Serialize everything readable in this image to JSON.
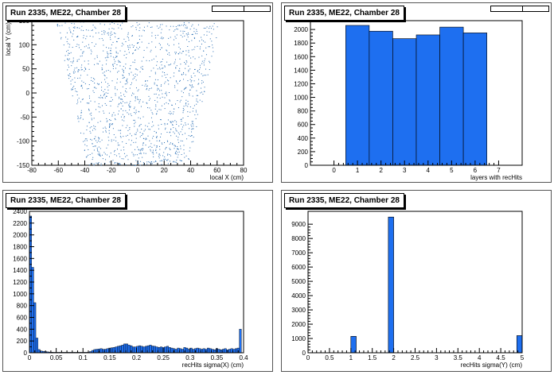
{
  "pads": [
    {
      "title": "Run 2335, ME22, Chamber 28",
      "chart_data": {
        "type": "scatter",
        "title": "Run 2335, ME22, Chamber 28",
        "xlabel": "local X (cm)",
        "ylabel": "local Y (cm)",
        "xlim": [
          -80,
          80
        ],
        "ylim": [
          -150,
          150
        ],
        "xticks": [
          -80,
          -60,
          -40,
          -20,
          0,
          20,
          40,
          60,
          80
        ],
        "yticks": [
          -150,
          -100,
          -50,
          0,
          50,
          100,
          150
        ],
        "point_color": "#2a6fb5",
        "region": {
          "y_top": 148,
          "y_bottom": -150,
          "x_half_width_top": 62,
          "x_half_width_bottom": 38
        }
      }
    },
    {
      "title": "Run 2335, ME22, Chamber 28",
      "chart_data": {
        "type": "bar",
        "title": "Run 2335, ME22, Chamber 28",
        "xlabel": "layers with recHits",
        "ylabel": "",
        "xlim": [
          -1,
          8
        ],
        "ylim": [
          0,
          2130
        ],
        "xticks": [
          0,
          1,
          2,
          3,
          4,
          5,
          6,
          7
        ],
        "yticks": [
          0,
          200,
          400,
          600,
          800,
          1000,
          1200,
          1400,
          1600,
          1800,
          2000
        ],
        "bin_width": 1,
        "categories": [
          1,
          2,
          3,
          4,
          5,
          6
        ],
        "values": [
          2060,
          1975,
          1865,
          1920,
          2035,
          1950
        ],
        "fill": "#1e6ff0"
      }
    },
    {
      "title": "Run 2335, ME22, Chamber 28",
      "chart_data": {
        "type": "bar",
        "title": "Run 2335, ME22, Chamber 28",
        "xlabel": "recHits sigma(X) (cm)",
        "ylabel": "",
        "xlim": [
          0,
          0.4
        ],
        "ylim": [
          0,
          2400
        ],
        "xticks": [
          0,
          0.05,
          0.1,
          0.15,
          0.2,
          0.25,
          0.3,
          0.35,
          0.4
        ],
        "xticklabels": [
          "0",
          "0.05",
          "0.1",
          "0.15",
          "0.2",
          "0.25",
          "0.3",
          "0.35",
          "0.4"
        ],
        "yticks": [
          0,
          200,
          400,
          600,
          800,
          1000,
          1200,
          1400,
          1600,
          1800,
          2000,
          2200,
          2400
        ],
        "bin_width": 0.004,
        "values": [
          2320,
          1450,
          850,
          250,
          55,
          30,
          25,
          20,
          15,
          12,
          10,
          8,
          8,
          8,
          8,
          8,
          8,
          8,
          8,
          8,
          8,
          8,
          8,
          8,
          8,
          8,
          8,
          8,
          20,
          40,
          55,
          60,
          65,
          70,
          60,
          60,
          70,
          80,
          85,
          90,
          100,
          110,
          120,
          130,
          150,
          150,
          130,
          120,
          100,
          100,
          110,
          120,
          110,
          100,
          110,
          120,
          130,
          115,
          110,
          100,
          90,
          100,
          90,
          100,
          110,
          90,
          80,
          70,
          60,
          80,
          70,
          60,
          90,
          80,
          60,
          80,
          60,
          70,
          80,
          70,
          60,
          70,
          60,
          80,
          70,
          60,
          50,
          70,
          60,
          50,
          60,
          70,
          50,
          60,
          70,
          60,
          70,
          80,
          400
        ],
        "fill": "#1e6ff0"
      }
    },
    {
      "title": "Run 2335, ME22, Chamber 28",
      "chart_data": {
        "type": "bar",
        "title": "Run 2335, ME22, Chamber 28",
        "xlabel": "recHits sigma(Y) (cm)",
        "ylabel": "",
        "xlim": [
          0,
          5
        ],
        "ylim": [
          0,
          9900
        ],
        "xticks": [
          0,
          0.5,
          1,
          1.5,
          2,
          2.5,
          3,
          3.5,
          4,
          4.5,
          5
        ],
        "xticklabels": [
          "0",
          "0.5",
          "1",
          "1.5",
          "2",
          "2.5",
          "3",
          "3.5",
          "4",
          "4.5",
          "5"
        ],
        "yticks": [
          0,
          1000,
          2000,
          3000,
          4000,
          5000,
          6000,
          7000,
          8000,
          9000
        ],
        "bins": [
          {
            "x0": 1.0,
            "x1": 1.125,
            "value": 1150
          },
          {
            "x0": 1.875,
            "x1": 2.0,
            "value": 9500
          },
          {
            "x0": 4.875,
            "x1": 5.0,
            "value": 1200
          }
        ],
        "fill": "#1e6ff0"
      }
    }
  ]
}
